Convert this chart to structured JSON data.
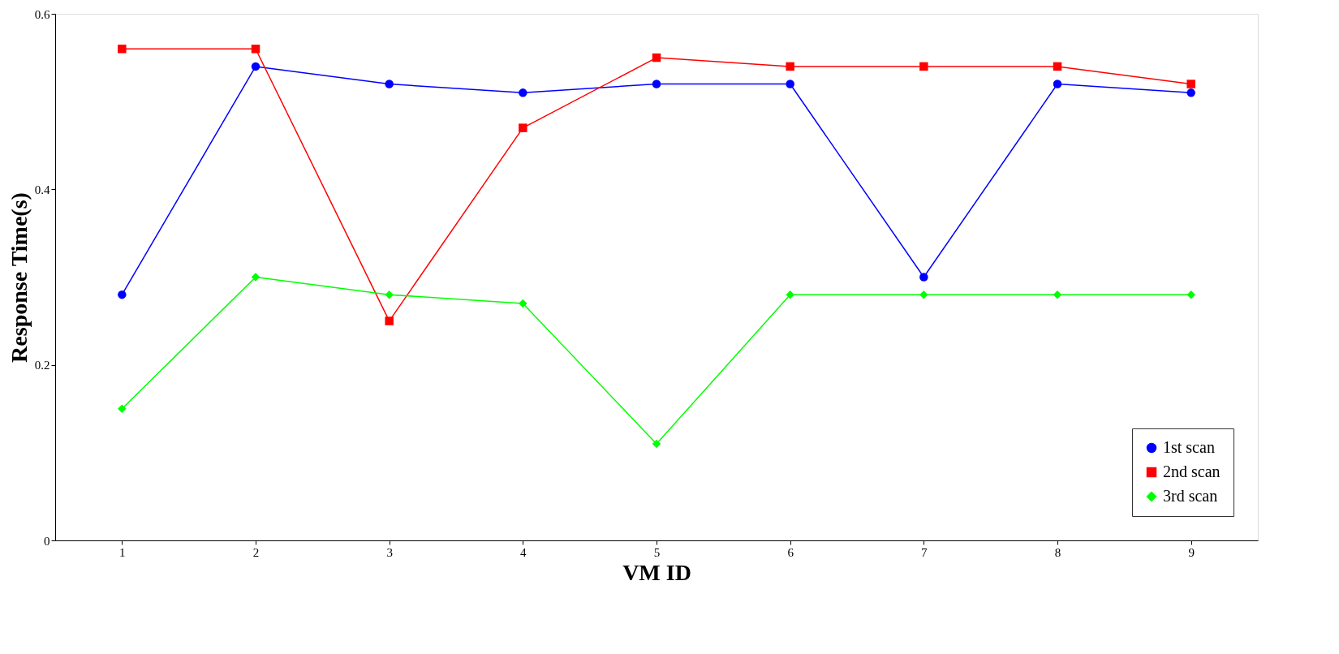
{
  "chart_data": {
    "type": "line",
    "xlabel": "VM ID",
    "ylabel": "Response Time(s)",
    "x": [
      1,
      2,
      3,
      4,
      5,
      6,
      7,
      8,
      9
    ],
    "xlim": [
      0.5,
      9.5
    ],
    "xticks": [
      1,
      2,
      3,
      4,
      5,
      6,
      7,
      8,
      9
    ],
    "ylim": [
      0,
      0.6
    ],
    "yticks": [
      0,
      0.2,
      0.4,
      0.6
    ],
    "grid": false,
    "legend": "bottom right",
    "line_style": "solid",
    "series": [
      {
        "name": "1st  scan",
        "color": "#0000ff",
        "marker": "circle",
        "values": [
          0.28,
          0.54,
          0.52,
          0.51,
          0.52,
          0.52,
          0.3,
          0.52,
          0.51
        ]
      },
      {
        "name": "2nd scan",
        "color": "#ff0000",
        "marker": "square",
        "values": [
          0.56,
          0.56,
          0.25,
          0.47,
          0.55,
          0.54,
          0.54,
          0.54,
          0.52
        ]
      },
      {
        "name": "3rd  scan",
        "color": "#00ff00",
        "marker": "diamond",
        "values": [
          0.15,
          0.3,
          0.28,
          0.27,
          0.11,
          0.28,
          0.28,
          0.28,
          0.28
        ]
      }
    ]
  }
}
